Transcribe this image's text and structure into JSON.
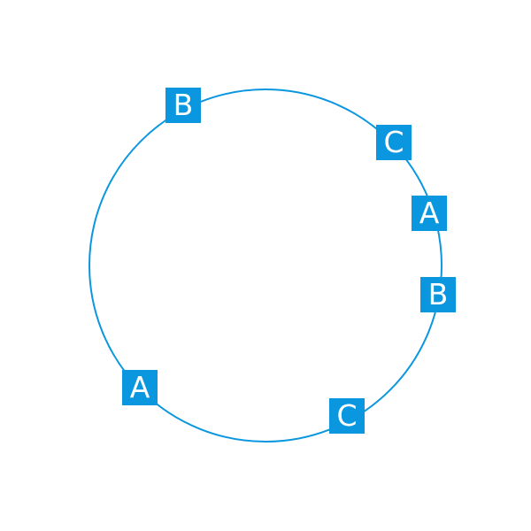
{
  "colors": {
    "ring": "#0b97e0",
    "node_fill": "#0b97e0",
    "node_text": "#ffffff",
    "background": "#ffffff"
  },
  "nodes": [
    {
      "id": "b-top",
      "label": "B"
    },
    {
      "id": "c-upper-right",
      "label": "C"
    },
    {
      "id": "a-right",
      "label": "A"
    },
    {
      "id": "b-right",
      "label": "B"
    },
    {
      "id": "c-bottom",
      "label": "C"
    },
    {
      "id": "a-lower-left",
      "label": "A"
    }
  ]
}
